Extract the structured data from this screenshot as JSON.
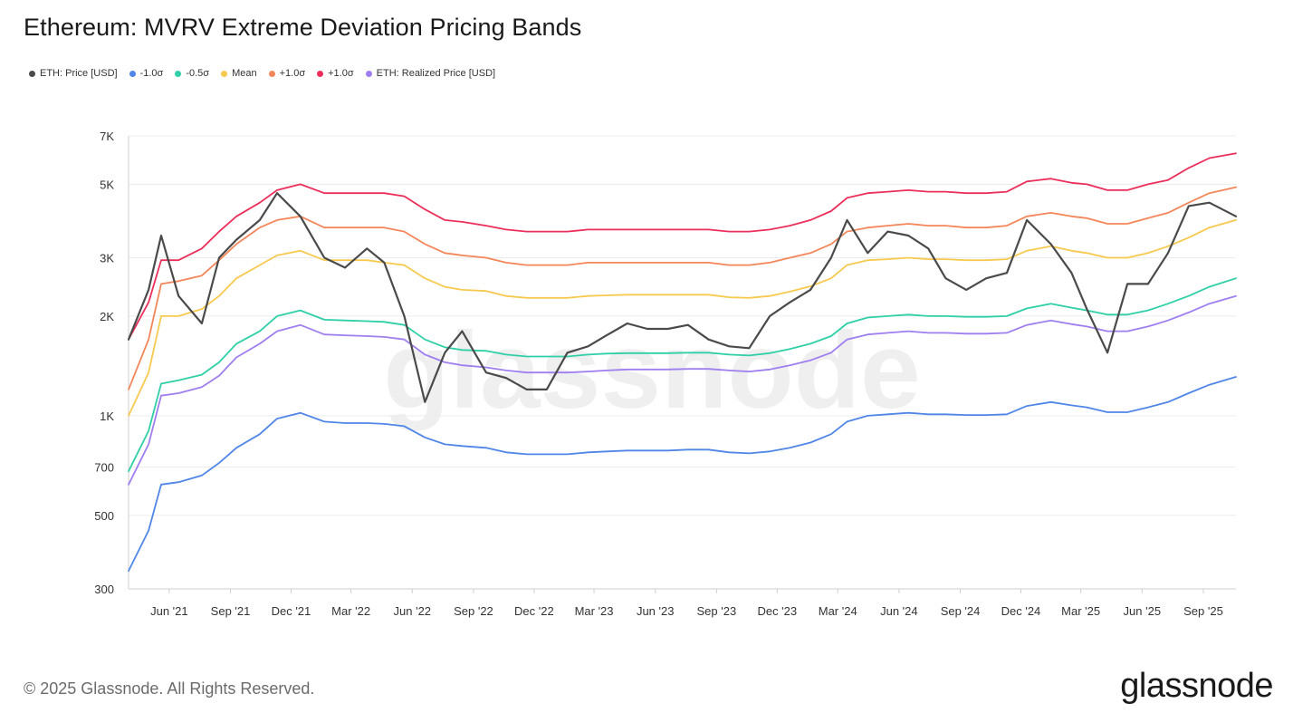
{
  "title": "Ethereum: MVRV Extreme Deviation Pricing Bands",
  "legend": [
    {
      "label": "ETH: Price [USD]",
      "color": "#4a4a4a"
    },
    {
      "label": "-1.0σ",
      "color": "#4f86e8"
    },
    {
      "label": "-0.5σ",
      "color": "#2fcfa7"
    },
    {
      "label": "Mean",
      "color": "#f8c94f"
    },
    {
      "label": "+1.0σ",
      "color": "#f4865a"
    },
    {
      "label": "+1.0σ",
      "color": "#ec2f5a"
    },
    {
      "label": "ETH: Realized Price [USD]",
      "color": "#9f7ef0"
    }
  ],
  "watermark": "glassnode",
  "footer": "© 2025 Glassnode. All Rights Reserved.",
  "brand": "glassnode",
  "chart_data": {
    "type": "line",
    "yscale": "log",
    "ylim": [
      300,
      7000
    ],
    "xlim": [
      "2021-04-01",
      "2025-10-20"
    ],
    "y_ticks": [
      300,
      500,
      700,
      1000,
      2000,
      3000,
      5000,
      7000
    ],
    "y_tick_labels": [
      "300",
      "500",
      "700",
      "1K",
      "2K",
      "3K",
      "5K",
      "7K"
    ],
    "x_ticks": [
      "2021-06-01",
      "2021-09-01",
      "2021-12-01",
      "2022-03-01",
      "2022-06-01",
      "2022-09-01",
      "2022-12-01",
      "2023-03-01",
      "2023-06-01",
      "2023-09-01",
      "2023-12-01",
      "2024-03-01",
      "2024-06-01",
      "2024-09-01",
      "2024-12-01",
      "2025-03-01",
      "2025-06-01",
      "2025-09-01"
    ],
    "x_tick_labels": [
      "Jun '21",
      "Sep '21",
      "Dec '21",
      "Mar '22",
      "Jun '22",
      "Sep '22",
      "Dec '22",
      "Mar '23",
      "Jun '23",
      "Sep '23",
      "Dec '23",
      "Mar '24",
      "Jun '24",
      "Sep '24",
      "Dec '24",
      "Mar '25",
      "Jun '25",
      "Sep '25"
    ],
    "x": [
      "2021-04-01",
      "2021-05-01",
      "2021-05-20",
      "2021-06-15",
      "2021-07-20",
      "2021-08-15",
      "2021-09-10",
      "2021-10-15",
      "2021-11-10",
      "2021-12-15",
      "2022-01-20",
      "2022-02-20",
      "2022-03-25",
      "2022-04-20",
      "2022-05-20",
      "2022-06-20",
      "2022-07-20",
      "2022-08-15",
      "2022-09-20",
      "2022-10-20",
      "2022-11-20",
      "2022-12-20",
      "2023-01-20",
      "2023-02-20",
      "2023-03-20",
      "2023-04-20",
      "2023-05-20",
      "2023-06-20",
      "2023-07-20",
      "2023-08-20",
      "2023-09-20",
      "2023-10-20",
      "2023-11-20",
      "2023-12-20",
      "2024-01-20",
      "2024-02-20",
      "2024-03-15",
      "2024-04-15",
      "2024-05-15",
      "2024-06-15",
      "2024-07-15",
      "2024-08-10",
      "2024-09-10",
      "2024-10-10",
      "2024-11-10",
      "2024-12-10",
      "2025-01-15",
      "2025-02-15",
      "2025-03-10",
      "2025-04-10",
      "2025-05-10",
      "2025-06-10",
      "2025-07-10",
      "2025-08-10",
      "2025-09-10",
      "2025-10-20"
    ],
    "series": [
      {
        "name": "ETH: Price [USD]",
        "color": "#4a4a4a",
        "width": 2.2,
        "values": [
          1700,
          2400,
          3500,
          2300,
          1900,
          3000,
          3400,
          3900,
          4700,
          4000,
          3000,
          2800,
          3200,
          2900,
          2000,
          1100,
          1550,
          1800,
          1350,
          1300,
          1200,
          1200,
          1550,
          1620,
          1750,
          1900,
          1830,
          1830,
          1880,
          1700,
          1620,
          1600,
          2000,
          2200,
          2400,
          3000,
          3900,
          3100,
          3600,
          3500,
          3200,
          2600,
          2400,
          2600,
          2700,
          3900,
          3300,
          2700,
          2100,
          1550,
          2500,
          2500,
          3100,
          4300,
          4400,
          4000
        ]
      },
      {
        "name": "+1.0σ",
        "color": "#ec2f5a",
        "width": 1.8,
        "values": [
          1700,
          2200,
          2950,
          2950,
          3200,
          3600,
          4000,
          4400,
          4800,
          5000,
          4700,
          4700,
          4700,
          4700,
          4600,
          4200,
          3900,
          3850,
          3750,
          3650,
          3600,
          3600,
          3600,
          3650,
          3650,
          3650,
          3650,
          3650,
          3650,
          3650,
          3600,
          3600,
          3650,
          3750,
          3900,
          4150,
          4550,
          4700,
          4750,
          4800,
          4750,
          4750,
          4700,
          4700,
          4750,
          5100,
          5200,
          5050,
          5000,
          4800,
          4800,
          5000,
          5150,
          5600,
          6000,
          6200
        ]
      },
      {
        "name": "+1.0σ",
        "color": "#f4865a",
        "width": 1.8,
        "values": [
          1200,
          1700,
          2500,
          2550,
          2650,
          2950,
          3300,
          3700,
          3900,
          4000,
          3700,
          3700,
          3700,
          3700,
          3600,
          3300,
          3100,
          3050,
          3000,
          2900,
          2850,
          2850,
          2850,
          2900,
          2900,
          2900,
          2900,
          2900,
          2900,
          2900,
          2850,
          2850,
          2900,
          3000,
          3100,
          3300,
          3600,
          3700,
          3750,
          3800,
          3750,
          3750,
          3700,
          3700,
          3750,
          4000,
          4100,
          4000,
          3950,
          3800,
          3800,
          3950,
          4100,
          4400,
          4700,
          4900
        ]
      },
      {
        "name": "Mean",
        "color": "#f8c94f",
        "width": 1.8,
        "values": [
          1000,
          1350,
          2000,
          2000,
          2100,
          2300,
          2600,
          2850,
          3050,
          3150,
          2950,
          2950,
          2950,
          2900,
          2850,
          2600,
          2450,
          2400,
          2380,
          2300,
          2270,
          2270,
          2270,
          2300,
          2310,
          2320,
          2320,
          2320,
          2320,
          2320,
          2280,
          2270,
          2300,
          2370,
          2460,
          2600,
          2850,
          2950,
          2970,
          3000,
          2970,
          2970,
          2950,
          2950,
          2970,
          3150,
          3250,
          3150,
          3100,
          3000,
          3000,
          3100,
          3250,
          3450,
          3700,
          3900
        ]
      },
      {
        "name": "-0.5σ",
        "color": "#2fcfa7",
        "width": 1.8,
        "values": [
          680,
          900,
          1250,
          1280,
          1330,
          1450,
          1650,
          1800,
          2000,
          2080,
          1950,
          1940,
          1930,
          1920,
          1880,
          1700,
          1610,
          1580,
          1570,
          1530,
          1510,
          1510,
          1510,
          1530,
          1540,
          1545,
          1545,
          1545,
          1550,
          1550,
          1530,
          1520,
          1545,
          1590,
          1650,
          1740,
          1900,
          1980,
          2000,
          2020,
          2000,
          2000,
          1990,
          1990,
          2000,
          2110,
          2180,
          2120,
          2080,
          2020,
          2020,
          2080,
          2180,
          2300,
          2450,
          2600
        ]
      },
      {
        "name": "ETH: Realized Price [USD]",
        "color": "#9f7ef0",
        "width": 1.8,
        "values": [
          620,
          820,
          1150,
          1170,
          1220,
          1320,
          1500,
          1650,
          1800,
          1880,
          1760,
          1750,
          1740,
          1730,
          1700,
          1530,
          1450,
          1420,
          1400,
          1370,
          1350,
          1350,
          1350,
          1360,
          1370,
          1380,
          1380,
          1380,
          1385,
          1385,
          1370,
          1360,
          1380,
          1420,
          1470,
          1550,
          1700,
          1760,
          1780,
          1800,
          1780,
          1780,
          1770,
          1770,
          1780,
          1880,
          1940,
          1890,
          1860,
          1800,
          1800,
          1860,
          1940,
          2050,
          2180,
          2300
        ]
      },
      {
        "name": "-1.0σ",
        "color": "#4f86e8",
        "width": 1.8,
        "values": [
          340,
          450,
          620,
          630,
          660,
          720,
          800,
          880,
          980,
          1020,
          960,
          950,
          950,
          945,
          930,
          860,
          820,
          810,
          800,
          775,
          765,
          765,
          765,
          775,
          780,
          785,
          785,
          785,
          790,
          790,
          775,
          770,
          780,
          800,
          830,
          880,
          960,
          1000,
          1010,
          1020,
          1010,
          1010,
          1005,
          1005,
          1010,
          1070,
          1100,
          1075,
          1060,
          1025,
          1025,
          1060,
          1100,
          1170,
          1240,
          1310
        ]
      }
    ]
  }
}
